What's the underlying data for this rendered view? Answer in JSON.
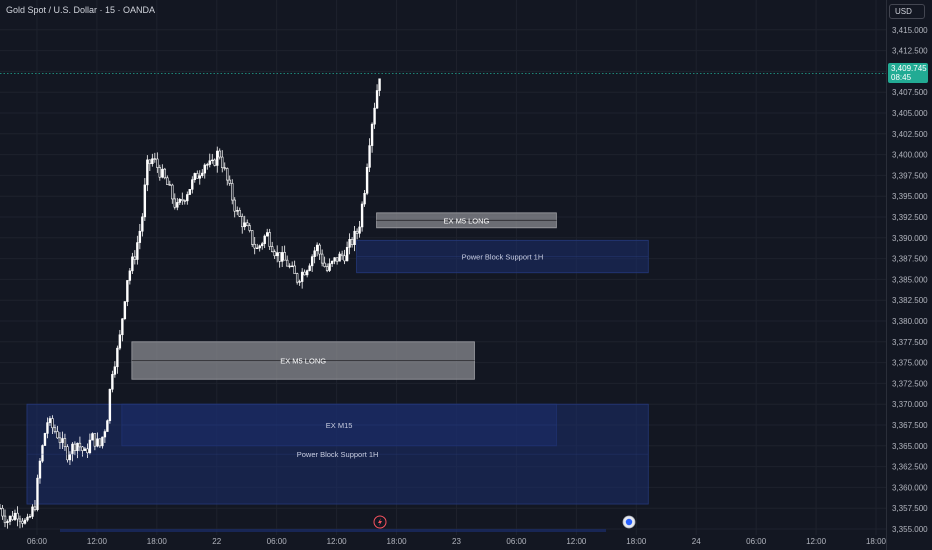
{
  "header": {
    "symbol_title": "Gold Spot / U.S. Dollar · 15 · OANDA",
    "currency": "USD"
  },
  "last_price": {
    "price": "3,409.745",
    "countdown": "08:45",
    "color": "#22ab94"
  },
  "colors": {
    "background": "#131722",
    "candle_up": "#ffffff",
    "candle_down": "#ffffff",
    "blue_zone": "#1b2e6b",
    "gray_zone": "#8a8b90",
    "axis_text": "#b2b5be",
    "last_price_line": "#22ab94"
  },
  "markers": {
    "bottom_icons": [
      "lightning-icon",
      "economic-event-icon"
    ]
  },
  "chart_data": {
    "type": "candlestick",
    "title": "Gold Spot / U.S. Dollar · 15 · OANDA",
    "ylim": [
      3354.0,
      3417.0
    ],
    "y_ticks": [
      "3,415.000",
      "3,412.500",
      "3,410.000",
      "3,407.500",
      "3,405.000",
      "3,402.500",
      "3,400.000",
      "3,397.500",
      "3,395.000",
      "3,392.500",
      "3,390.000",
      "3,387.500",
      "3,385.000",
      "3,382.500",
      "3,380.000",
      "3,377.500",
      "3,375.000",
      "3,372.500",
      "3,370.000",
      "3,367.500",
      "3,365.000",
      "3,362.500",
      "3,360.000",
      "3,357.500",
      "3,355.000"
    ],
    "x_ticks": [
      "06:00",
      "12:00",
      "18:00",
      "22",
      "06:00",
      "12:00",
      "18:00",
      "23",
      "06:00",
      "12:00",
      "18:00",
      "24",
      "06:00",
      "12:00",
      "18:00"
    ],
    "x_tick_hours": [
      6,
      12,
      18,
      24,
      30,
      36,
      42,
      48,
      54,
      60,
      66,
      72,
      78,
      84,
      90
    ],
    "x_range_hours": [
      2.3,
      91.0
    ],
    "candle_interval_minutes": 15,
    "price_path": {
      "t": [
        2.3,
        3.0,
        4.0,
        5.0,
        5.8,
        6.3,
        7.0,
        8.0,
        9.0,
        10.0,
        10.8,
        11.5,
        12.3,
        13.0,
        13.5,
        14.2,
        15.0,
        15.8,
        16.5,
        17.0,
        17.6,
        18.3,
        19.0,
        20.0,
        21.0,
        22.0,
        22.8,
        23.5,
        24.2,
        25.0,
        26.0,
        27.0,
        28.0,
        29.0,
        30.0,
        31.0,
        32.0,
        33.0,
        34.0,
        35.0,
        36.0,
        36.8,
        37.5,
        38.2,
        38.8,
        39.2,
        39.6,
        40.0,
        40.3
      ],
      "price": [
        3357.5,
        3356.0,
        3357.0,
        3355.5,
        3358.0,
        3363.0,
        3368.0,
        3366.5,
        3364.0,
        3365.5,
        3364.0,
        3366.0,
        3365.0,
        3368.0,
        3374.0,
        3377.0,
        3385.0,
        3388.0,
        3392.0,
        3398.5,
        3399.5,
        3398.0,
        3396.5,
        3393.5,
        3395.5,
        3397.5,
        3399.0,
        3398.5,
        3400.5,
        3397.0,
        3393.0,
        3391.0,
        3388.5,
        3390.5,
        3388.0,
        3387.0,
        3385.0,
        3386.5,
        3389.0,
        3386.0,
        3387.5,
        3388.0,
        3389.5,
        3391.0,
        3396.0,
        3401.0,
        3404.5,
        3407.5,
        3409.7
      ]
    },
    "zones": [
      {
        "label": "EX M5 LONG",
        "color": "gray",
        "start_h": 40.0,
        "end_h": 58.0,
        "top": 3393.0,
        "bottom": 3391.2
      },
      {
        "label": "Power Block Support 1H",
        "color": "blue",
        "start_h": 38.0,
        "end_h": 67.2,
        "top": 3389.7,
        "bottom": 3385.8
      },
      {
        "label": "EX M5 LONG",
        "color": "gray",
        "start_h": 15.5,
        "end_h": 49.8,
        "top": 3377.5,
        "bottom": 3373.0
      },
      {
        "label": "EX M15",
        "color": "blue",
        "start_h": 14.5,
        "end_h": 58.0,
        "top": 3370.0,
        "bottom": 3365.0
      },
      {
        "label": "Power Block Support 1H",
        "color": "blue",
        "start_h": 5.0,
        "end_h": 67.2,
        "top": 3370.0,
        "bottom": 3358.0
      }
    ]
  }
}
